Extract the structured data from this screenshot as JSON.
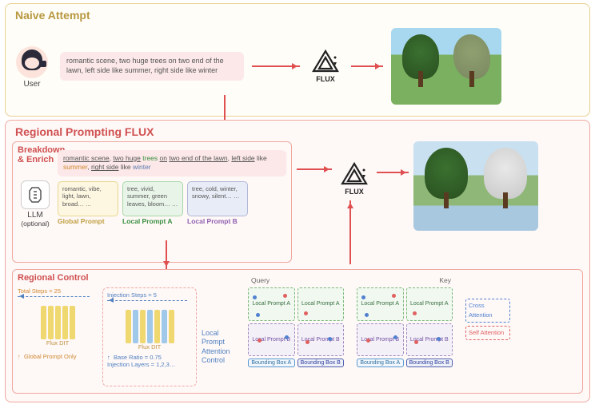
{
  "naive": {
    "title": "Naive Attempt",
    "user_label": "User",
    "prompt": "romantic scene, two huge trees on two end of the lawn, left side like summer, right side like winter",
    "flux": "FLUX"
  },
  "regional": {
    "title": "Regional Prompting FLUX",
    "breakdown": {
      "title": "Breakdown & Enrich",
      "llm_label": "LLM",
      "llm_optional": "(optional)",
      "rich_html": "<span class='ul'>romantic scene</span>, <span class='ul'>two huge</span> <span class='c-green'>trees</span> <span class='ul'>on</span> <span class='ul'>two end of the lawn</span>, <span class='ul'>left side</span> like <span class='c-orange'>summer</span>, <span class='ul'>right side</span> like <span class='c-blue'>winter</span>",
      "global_card": "romantic, vibe, light, lawn, broad… …",
      "global_label": "Global Prompt",
      "localA_card": "tree, vivid, summer, green leaves, bloom… …",
      "localA_label": "Local Prompt A",
      "localB_card": "tree, cold, winter, snowy, silent… …",
      "localB_label": "Local Prompt B",
      "flux": "FLUX"
    },
    "control": {
      "title": "Regional Control",
      "total_steps": "Total Steps = 25",
      "injection_steps": "Injection Steps = 5",
      "flux_dit": "Flux DIT",
      "global_only": "Global Prompt Only",
      "base_ratio": "Base Ratio = 0.75",
      "injection_layers": "Injection Layers = 1,2,3…",
      "lpac": "Local Prompt Attention Control",
      "query": "Query",
      "key": "Key",
      "lpa": "Local Prompt A",
      "lpb": "Local Prompt B",
      "bba": "Bounding Box A",
      "bbb": "Bounding Box B",
      "cross": "Cross Attention",
      "self": "Self Attention"
    }
  },
  "colors": {
    "accent_red": "#e05050",
    "naive_border": "#e8d090",
    "regional_border": "#f0a8a0"
  }
}
